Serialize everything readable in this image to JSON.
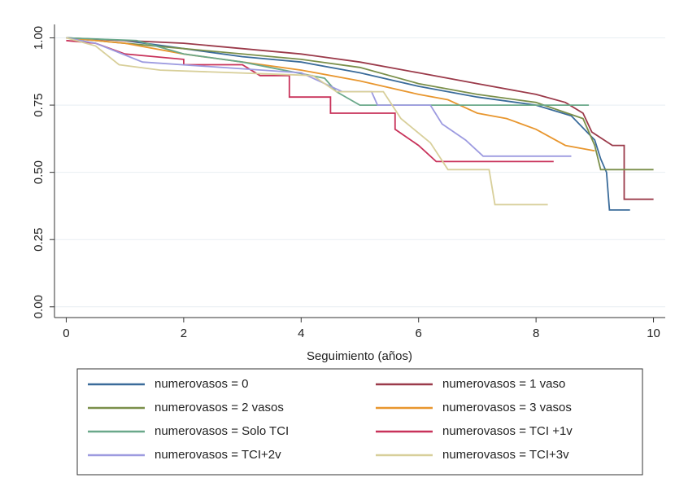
{
  "chart_data": {
    "type": "line",
    "x_label": "Seguimiento (años)",
    "xlim": [
      -0.2,
      10.2
    ],
    "ylim": [
      -0.04,
      1.05
    ],
    "xticks": [
      0,
      2,
      4,
      6,
      8,
      10
    ],
    "yticks": [
      {
        "value": 0,
        "label": "0.00"
      },
      {
        "value": 0.25,
        "label": "0.25"
      },
      {
        "value": 0.5,
        "label": "0.50"
      },
      {
        "value": 0.75,
        "label": "0.75"
      },
      {
        "value": 1,
        "label": "1.00"
      }
    ],
    "grid": true,
    "series": [
      {
        "name": "numerovasos = 0",
        "color": "#3a6b9a",
        "x": [
          0,
          1,
          2,
          3,
          4,
          5,
          6,
          7,
          8,
          8.6,
          9,
          9.1,
          9.2,
          9.25,
          9.6
        ],
        "values": [
          1,
          0.99,
          0.96,
          0.93,
          0.91,
          0.87,
          0.82,
          0.78,
          0.75,
          0.71,
          0.62,
          0.55,
          0.5,
          0.36,
          0.36
        ]
      },
      {
        "name": "numerovasos = 1 vaso",
        "color": "#9b3a4a",
        "x": [
          0,
          2,
          4,
          5,
          6,
          7,
          8,
          8.5,
          8.8,
          8.95,
          9.3,
          9.5,
          9.5,
          10
        ],
        "values": [
          1,
          0.98,
          0.94,
          0.91,
          0.87,
          0.83,
          0.79,
          0.76,
          0.72,
          0.65,
          0.6,
          0.6,
          0.4,
          0.4
        ]
      },
      {
        "name": "numerovasos = 2 vasos",
        "color": "#7a8f4a",
        "x": [
          0,
          2,
          4,
          5,
          6,
          7,
          8,
          8.8,
          9,
          9.1,
          10
        ],
        "values": [
          1,
          0.96,
          0.92,
          0.89,
          0.83,
          0.79,
          0.76,
          0.7,
          0.6,
          0.51,
          0.51
        ]
      },
      {
        "name": "numerovasos = 3 vasos",
        "color": "#e8962e",
        "x": [
          0,
          1,
          2,
          3,
          4,
          5,
          6,
          6.5,
          7,
          7.5,
          8,
          8.5,
          9
        ],
        "values": [
          1,
          0.98,
          0.94,
          0.91,
          0.88,
          0.84,
          0.79,
          0.77,
          0.72,
          0.7,
          0.66,
          0.6,
          0.58
        ]
      },
      {
        "name": "numerovasos = Solo TCI",
        "color": "#6aa88a",
        "x": [
          0,
          1.2,
          2,
          3,
          4.4,
          4.6,
          5,
          6,
          8.9
        ],
        "values": [
          1,
          0.99,
          0.94,
          0.91,
          0.85,
          0.8,
          0.75,
          0.75,
          0.75
        ]
      },
      {
        "name": "numerovasos = TCI +1v",
        "color": "#c8325a",
        "x": [
          0,
          0.5,
          1,
          2,
          2,
          3,
          3.3,
          3.8,
          3.8,
          4.5,
          4.5,
          5.6,
          5.6,
          6,
          6.3,
          8.3
        ],
        "values": [
          0.99,
          0.98,
          0.94,
          0.92,
          0.9,
          0.9,
          0.86,
          0.86,
          0.78,
          0.78,
          0.72,
          0.72,
          0.66,
          0.6,
          0.54,
          0.54
        ]
      },
      {
        "name": "numerovasos = TCI+2v",
        "color": "#9d9be0",
        "x": [
          0,
          0.5,
          1.3,
          4,
          4.7,
          5.2,
          5.3,
          6.2,
          6.4,
          6.8,
          7.1,
          8.6
        ],
        "values": [
          1,
          0.98,
          0.91,
          0.87,
          0.8,
          0.8,
          0.75,
          0.75,
          0.68,
          0.62,
          0.56,
          0.56
        ]
      },
      {
        "name": "numerovasos = TCI+3v",
        "color": "#d8cf9a",
        "x": [
          0,
          0.5,
          0.9,
          1.6,
          4.2,
          4.6,
          5.4,
          5.7,
          6.2,
          6.5,
          7.2,
          7.3,
          8.2
        ],
        "values": [
          1,
          0.97,
          0.9,
          0.88,
          0.86,
          0.8,
          0.8,
          0.7,
          0.61,
          0.51,
          0.51,
          0.38,
          0.38
        ]
      }
    ]
  }
}
